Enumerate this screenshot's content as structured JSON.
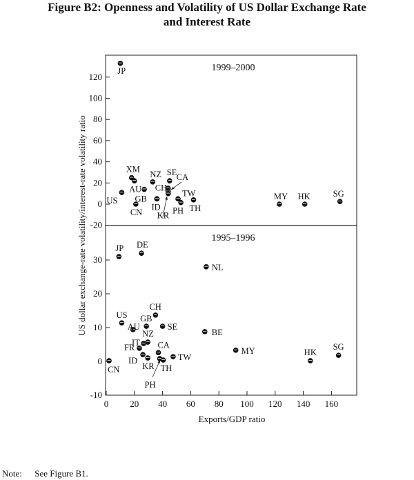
{
  "title_line1": "Figure B2: Openness and Volatility of US Dollar Exchange Rate",
  "title_line2": "and Interest Rate",
  "note_label": "Note:",
  "note_text": "See Figure B1.",
  "chart_data": [
    {
      "type": "scatter",
      "title": "1999–2000",
      "xlabel": "Exports/GDP ratio",
      "ylabel": "US dollar exchange-rate volatility/interest-rate volatility ratio",
      "xlim": [
        0,
        180
      ],
      "ylim": [
        -20,
        135
      ],
      "yticks": [
        -20,
        0,
        20,
        40,
        60,
        80,
        100,
        120
      ],
      "points": [
        {
          "label": "JP",
          "x": 10,
          "y": 133
        },
        {
          "label": "XM",
          "x": 18,
          "y": 25
        },
        {
          "label": "",
          "x": 20,
          "y": 22
        },
        {
          "label": "AU",
          "x": 27,
          "y": 14
        },
        {
          "label": "US",
          "x": 11,
          "y": 11
        },
        {
          "label": "GB",
          "x": 36,
          "y": 5
        },
        {
          "label": "CN",
          "x": 21,
          "y": 0
        },
        {
          "label": "NZ",
          "x": 33,
          "y": 21
        },
        {
          "label": "SE",
          "x": 45,
          "y": 22
        },
        {
          "label": "CH",
          "x": 44,
          "y": 12
        },
        {
          "label": "CA",
          "x": 44,
          "y": 15
        },
        {
          "label": "KR",
          "x": 44,
          "y": 10
        },
        {
          "label": "ID",
          "x": 36,
          "y": 5
        },
        {
          "label": "TW",
          "x": 51,
          "y": 5
        },
        {
          "label": "PH",
          "x": 53,
          "y": 1.5
        },
        {
          "label": "TH",
          "x": 62,
          "y": 4
        },
        {
          "label": "MY",
          "x": 123,
          "y": 0
        },
        {
          "label": "HK",
          "x": 141,
          "y": 0
        },
        {
          "label": "SG",
          "x": 166,
          "y": 2.5
        }
      ]
    },
    {
      "type": "scatter",
      "title": "1995–1996",
      "xlabel": "Exports/GDP ratio",
      "xlim": [
        0,
        180
      ],
      "ylim": [
        -10,
        40
      ],
      "yticks": [
        -10,
        0,
        10,
        20,
        30
      ],
      "xticks": [
        0,
        20,
        40,
        60,
        80,
        100,
        120,
        140,
        160
      ],
      "points": [
        {
          "label": "JP",
          "x": 9,
          "y": 31
        },
        {
          "label": "DE",
          "x": 25,
          "y": 32
        },
        {
          "label": "NL",
          "x": 71,
          "y": 28
        },
        {
          "label": "US",
          "x": 11,
          "y": 11.4
        },
        {
          "label": "AU",
          "x": 19,
          "y": 9.4
        },
        {
          "label": "GB",
          "x": 28.5,
          "y": 10.4
        },
        {
          "label": "CH",
          "x": 35,
          "y": 13.7
        },
        {
          "label": "SE",
          "x": 40,
          "y": 10.4
        },
        {
          "label": "BE",
          "x": 70,
          "y": 8.8
        },
        {
          "label": "IT",
          "x": 26.5,
          "y": 5.3
        },
        {
          "label": "NZ",
          "x": 29.5,
          "y": 5.7
        },
        {
          "label": "FR",
          "x": 23.5,
          "y": 3.9
        },
        {
          "label": "ID",
          "x": 26,
          "y": 2
        },
        {
          "label": "KR",
          "x": 29.5,
          "y": 1
        },
        {
          "label": "CA",
          "x": 37,
          "y": 2.6
        },
        {
          "label": "TW",
          "x": 47.5,
          "y": 1.4
        },
        {
          "label": "PH",
          "x": 38,
          "y": 0.8
        },
        {
          "label": "TH",
          "x": 40.5,
          "y": 0.4
        },
        {
          "label": "CN",
          "x": 2,
          "y": 0.2
        },
        {
          "label": "MY",
          "x": 92,
          "y": 3.3
        },
        {
          "label": "HK",
          "x": 145,
          "y": 0.2
        },
        {
          "label": "SG",
          "x": 165,
          "y": 1.8
        }
      ]
    }
  ]
}
